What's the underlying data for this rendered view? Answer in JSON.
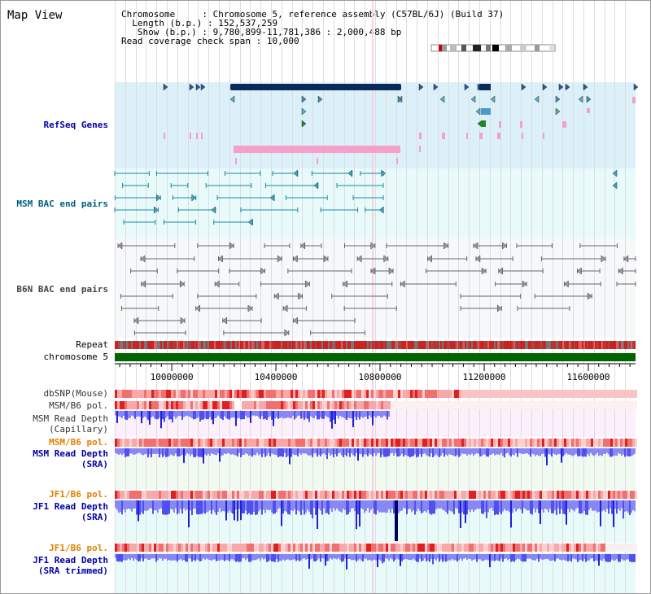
{
  "page": {
    "title": "Map View"
  },
  "info": {
    "chromosome_label": "Chromosome",
    "chromosome_value": "Chromosome 5, reference assembly (C57BL/6J) (Build 37)",
    "length_label": "Length (b.p.)",
    "length_value": "152,537,259",
    "show_label": "Show (b.p.)",
    "show_value": "9,780,899-11,781,386 : 2,000,488 bp",
    "coverage_label": "Read coverage check span",
    "coverage_value": "10,000"
  },
  "tracks": {
    "refseq": {
      "label": "RefSeq Genes",
      "color": "#0000aa",
      "bg": "#dcf0fa"
    },
    "msm_bac": {
      "label": "MSM BAC end pairs",
      "color": "#006080",
      "bg": "#e8fafa"
    },
    "b6n_bac": {
      "label": "B6N BAC end pairs",
      "color": "#444444",
      "bg": "#f4f6f8"
    },
    "repeat": {
      "label": "Repeat"
    },
    "chromosome": {
      "label": "chromosome 5",
      "color": "#006400"
    },
    "dbsnp": {
      "label": "dbSNP(Mouse)"
    },
    "msm_b6_pol_1": {
      "label": "MSM/B6 pol."
    },
    "msm_read_depth_cap": {
      "label_1": "MSM Read Depth",
      "label_2": "(Capillary)"
    },
    "msm_b6_pol_2": {
      "label": "MSM/B6 pol.",
      "color": "#e08000"
    },
    "msm_read_depth_sra": {
      "label_1": "MSM Read Depth",
      "label_2": "(SRA)",
      "color": "#0000aa"
    },
    "jf1_b6_pol_1": {
      "label": "JF1/B6 pol.",
      "color": "#e08000"
    },
    "jf1_read_depth_sra": {
      "label_1": "JF1 Read Depth",
      "label_2": "(SRA)",
      "color": "#0000aa"
    },
    "jf1_b6_pol_2": {
      "label": "JF1/B6 pol.",
      "color": "#e08000"
    },
    "jf1_read_depth_trim": {
      "label_1": "JF1 Read Depth",
      "label_2": "(SRA trimmed)",
      "color": "#0000aa"
    }
  },
  "scale": {
    "start_bp": 9780899,
    "end_bp": 11781386,
    "ticks": [
      "10000000",
      "10400000",
      "10800000",
      "11200000",
      "11600000"
    ]
  },
  "colors": {
    "gene_dark": "#0a2a5a",
    "gene_pink": "#f4a0c8",
    "pol_red": "#e8403a",
    "depth_blue": "#5050f0"
  }
}
